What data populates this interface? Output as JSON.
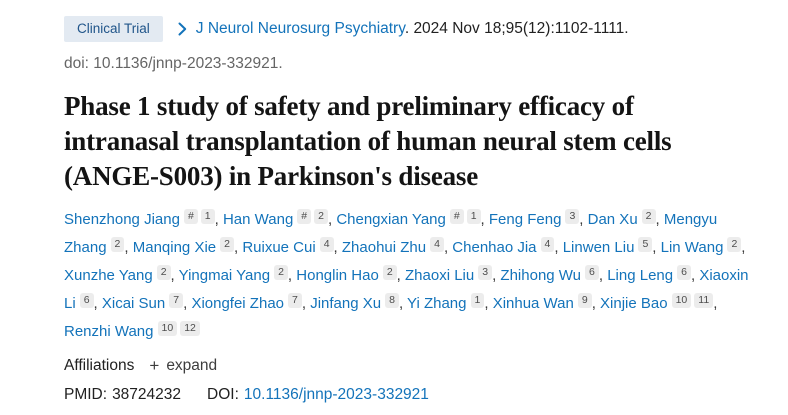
{
  "colors": {
    "link_blue": "#1373ba",
    "badge_bg": "#e3eaf2",
    "badge_text": "#20558a",
    "text_dark": "#212121",
    "text_gray": "#656565",
    "sup_badge_bg": "#ececec",
    "sup_badge_text": "#4d4d4d"
  },
  "header": {
    "publication_type": "Clinical Trial",
    "journal": "J Neurol Neurosurg Psychiatry",
    "citation_details": ". 2024 Nov 18;95(12):1102-1111.",
    "doi_line": "doi: 10.1136/jnnp-2023-332921."
  },
  "title": "Phase 1 study of safety and preliminary efficacy of intranasal transplantation of human neural stem cells (ANGE-S003) in Parkinson's disease",
  "authors": [
    {
      "name": "Shenzhong Jiang",
      "sups": [
        "#",
        "1"
      ]
    },
    {
      "name": "Han Wang",
      "sups": [
        "#",
        "2"
      ]
    },
    {
      "name": "Chengxian Yang",
      "sups": [
        "#",
        "1"
      ]
    },
    {
      "name": "Feng Feng",
      "sups": [
        "3"
      ]
    },
    {
      "name": "Dan Xu",
      "sups": [
        "2"
      ]
    },
    {
      "name": "Mengyu Zhang",
      "sups": [
        "2"
      ]
    },
    {
      "name": "Manqing Xie",
      "sups": [
        "2"
      ]
    },
    {
      "name": "Ruixue Cui",
      "sups": [
        "4"
      ]
    },
    {
      "name": "Zhaohui Zhu",
      "sups": [
        "4"
      ]
    },
    {
      "name": "Chenhao Jia",
      "sups": [
        "4"
      ]
    },
    {
      "name": "Linwen Liu",
      "sups": [
        "5"
      ]
    },
    {
      "name": "Lin Wang",
      "sups": [
        "2"
      ]
    },
    {
      "name": "Xunzhe Yang",
      "sups": [
        "2"
      ]
    },
    {
      "name": "Yingmai Yang",
      "sups": [
        "2"
      ]
    },
    {
      "name": "Honglin Hao",
      "sups": [
        "2"
      ]
    },
    {
      "name": "Zhaoxi Liu",
      "sups": [
        "3"
      ]
    },
    {
      "name": "Zhihong Wu",
      "sups": [
        "6"
      ]
    },
    {
      "name": "Ling Leng",
      "sups": [
        "6"
      ]
    },
    {
      "name": "Xiaoxin Li",
      "sups": [
        "6"
      ]
    },
    {
      "name": "Xicai Sun",
      "sups": [
        "7"
      ]
    },
    {
      "name": "Xiongfei Zhao",
      "sups": [
        "7"
      ]
    },
    {
      "name": "Jinfang Xu",
      "sups": [
        "8"
      ]
    },
    {
      "name": "Yi Zhang",
      "sups": [
        "1"
      ]
    },
    {
      "name": "Xinhua Wan",
      "sups": [
        "9"
      ]
    },
    {
      "name": "Xinjie Bao",
      "sups": [
        "10",
        "11"
      ]
    },
    {
      "name": "Renzhi Wang",
      "sups": [
        "10",
        "12"
      ]
    }
  ],
  "affiliations": {
    "label": "Affiliations",
    "expand_label": "expand"
  },
  "identifiers": {
    "pmid_label": "PMID:",
    "pmid": "38724232",
    "doi_label": "DOI:",
    "doi": "10.1136/jnnp-2023-332921"
  }
}
